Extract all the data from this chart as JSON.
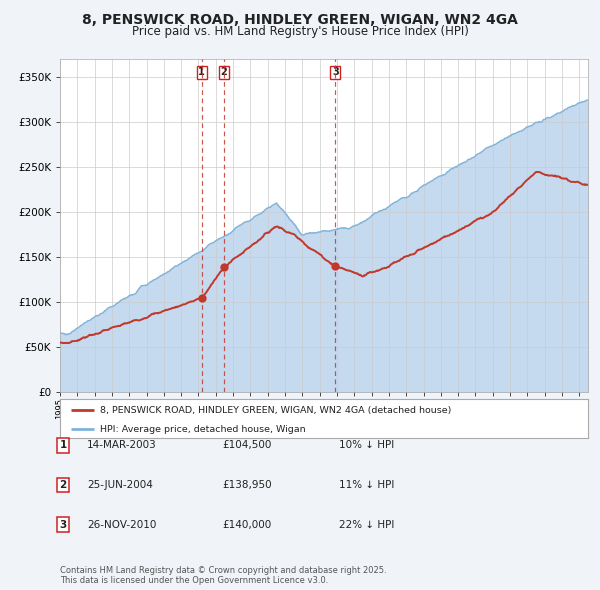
{
  "title": "8, PENSWICK ROAD, HINDLEY GREEN, WIGAN, WN2 4GA",
  "subtitle": "Price paid vs. HM Land Registry's House Price Index (HPI)",
  "title_fontsize": 10,
  "subtitle_fontsize": 8.5,
  "ylim": [
    0,
    370000
  ],
  "yticks": [
    0,
    50000,
    100000,
    150000,
    200000,
    250000,
    300000,
    350000
  ],
  "ytick_labels": [
    "£0",
    "£50K",
    "£100K",
    "£150K",
    "£200K",
    "£250K",
    "£300K",
    "£350K"
  ],
  "hpi_color": "#7fb3d9",
  "hpi_fill_color": "#c5d9ef",
  "house_color": "#c0392b",
  "background_color": "#f0f4f8",
  "chart_bg_color": "#ffffff",
  "grid_color": "#cccccc",
  "sale1_date": 2003.19,
  "sale1_price": 104500,
  "sale2_date": 2004.48,
  "sale2_price": 138950,
  "sale3_date": 2010.9,
  "sale3_price": 140000,
  "legend_house_label": "8, PENSWICK ROAD, HINDLEY GREEN, WIGAN, WN2 4GA (detached house)",
  "legend_hpi_label": "HPI: Average price, detached house, Wigan",
  "table_entries": [
    {
      "num": "1",
      "date": "14-MAR-2003",
      "price": "£104,500",
      "pct": "10% ↓ HPI"
    },
    {
      "num": "2",
      "date": "25-JUN-2004",
      "price": "£138,950",
      "pct": "11% ↓ HPI"
    },
    {
      "num": "3",
      "date": "26-NOV-2010",
      "price": "£140,000",
      "pct": "22% ↓ HPI"
    }
  ],
  "footnote": "Contains HM Land Registry data © Crown copyright and database right 2025.\nThis data is licensed under the Open Government Licence v3.0.",
  "xmin": 1995,
  "xmax": 2025.5
}
